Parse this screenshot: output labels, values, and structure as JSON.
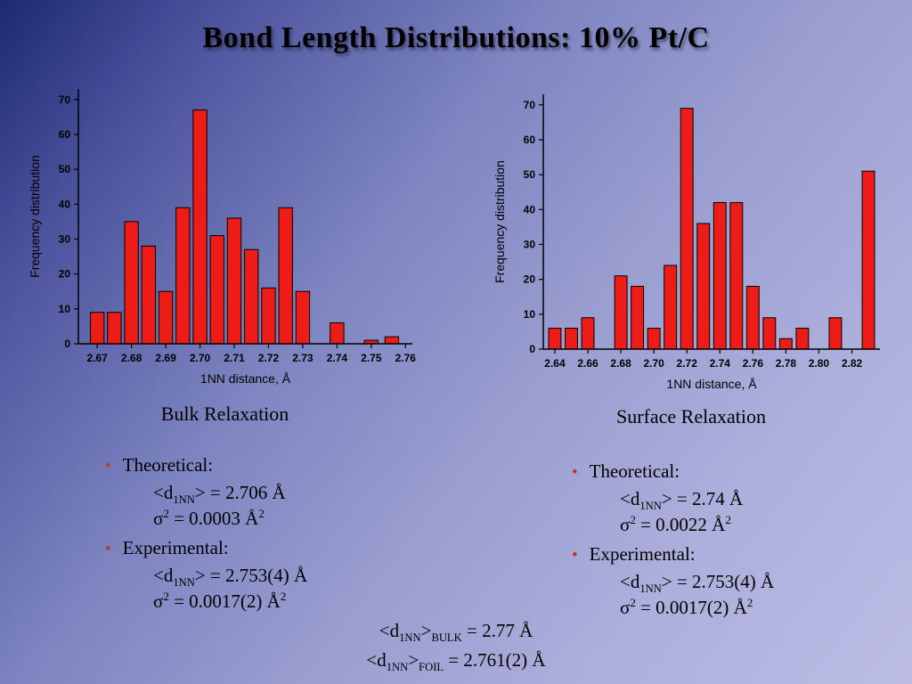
{
  "slide": {
    "title": "Bond Length Distributions:  10% Pt/C",
    "bullet_glyph": "•"
  },
  "colors": {
    "bar_fill": "#ed1c16",
    "bar_edge": "#000000",
    "bullet": "#cc3311"
  },
  "chart_data": [
    {
      "type": "bar",
      "title": "Bulk Relaxation",
      "xlabel": "1NN distance, Å",
      "ylabel": "Frequency distribution",
      "xlim": [
        2.6645,
        2.762
      ],
      "ylim": [
        0,
        73
      ],
      "ytick_values": [
        0,
        10,
        20,
        30,
        40,
        50,
        60,
        70
      ],
      "xtick_values": [
        2.67,
        2.68,
        2.69,
        2.7,
        2.71,
        2.72,
        2.73,
        2.74,
        2.75,
        2.76
      ],
      "xtick_labels": [
        "2.67",
        "2.68",
        "2.69",
        "2.70",
        "2.71",
        "2.72",
        "2.73",
        "2.74",
        "2.75",
        "2.76"
      ],
      "bar_width": 0.004,
      "grid": false,
      "legend": "none",
      "x": [
        2.67,
        2.675,
        2.68,
        2.685,
        2.69,
        2.695,
        2.7,
        2.705,
        2.71,
        2.715,
        2.72,
        2.725,
        2.73,
        2.74,
        2.75,
        2.756
      ],
      "values": [
        9,
        9,
        35,
        28,
        15,
        39,
        67,
        31,
        36,
        27,
        16,
        39,
        15,
        6,
        1,
        2
      ]
    },
    {
      "type": "bar",
      "title": "Surface Relaxation",
      "xlabel": "1NN distance, Å",
      "ylabel": "Frequency distribution",
      "xlim": [
        2.633,
        2.837
      ],
      "ylim": [
        0,
        73
      ],
      "ytick_values": [
        0,
        10,
        20,
        30,
        40,
        50,
        60,
        70
      ],
      "xtick_values": [
        2.64,
        2.66,
        2.68,
        2.7,
        2.72,
        2.74,
        2.76,
        2.78,
        2.8,
        2.82
      ],
      "xtick_labels": [
        "2.64",
        "2.66",
        "2.68",
        "2.70",
        "2.72",
        "2.74",
        "2.76",
        "2.78",
        "2.80",
        "2.82"
      ],
      "bar_width": 0.0075,
      "grid": false,
      "legend": "none",
      "x": [
        2.64,
        2.65,
        2.66,
        2.68,
        2.69,
        2.7,
        2.71,
        2.72,
        2.73,
        2.74,
        2.75,
        2.76,
        2.77,
        2.78,
        2.79,
        2.81,
        2.83
      ],
      "values": [
        6,
        6,
        9,
        21,
        18,
        6,
        24,
        69,
        36,
        42,
        42,
        18,
        9,
        3,
        6,
        9,
        51
      ]
    }
  ],
  "panels": {
    "left": {
      "caption": "Bulk Relaxation",
      "bullets": [
        {
          "label": "Theoretical:",
          "lines": [
            [
              "<d",
              {
                "sub": "1NN"
              },
              "> = 2.706 Å"
            ],
            [
              "σ",
              {
                "sup": "2"
              },
              " = 0.0003 Å",
              {
                "sup": "2"
              }
            ]
          ]
        },
        {
          "label": "Experimental:",
          "lines": [
            [
              "<d",
              {
                "sub": "1NN"
              },
              "> = 2.753(4) Å"
            ],
            [
              "σ",
              {
                "sup": "2"
              },
              " = 0.0017(2) Å",
              {
                "sup": "2"
              }
            ]
          ]
        }
      ]
    },
    "right": {
      "caption": "Surface Relaxation",
      "bullets": [
        {
          "label": "Theoretical:",
          "lines": [
            [
              "<d",
              {
                "sub": "1NN"
              },
              "> = 2.74 Å"
            ],
            [
              "σ",
              {
                "sup": "2"
              },
              " = 0.0022 Å",
              {
                "sup": "2"
              }
            ]
          ]
        },
        {
          "label": "Experimental:",
          "lines": [
            [
              "<d",
              {
                "sub": "1NN"
              },
              "> = 2.753(4) Å"
            ],
            [
              "σ",
              {
                "sup": "2"
              },
              " = 0.0017(2) Å",
              {
                "sup": "2"
              }
            ]
          ]
        }
      ]
    }
  },
  "footer": {
    "lines": [
      [
        "<d",
        {
          "sub": "1NN"
        },
        ">",
        {
          "sub": "BULK"
        },
        " = 2.77 Å"
      ],
      [
        "<d",
        {
          "sub": "1NN"
        },
        ">",
        {
          "sub": "FOIL"
        },
        " = 2.761(2) Å"
      ]
    ]
  }
}
